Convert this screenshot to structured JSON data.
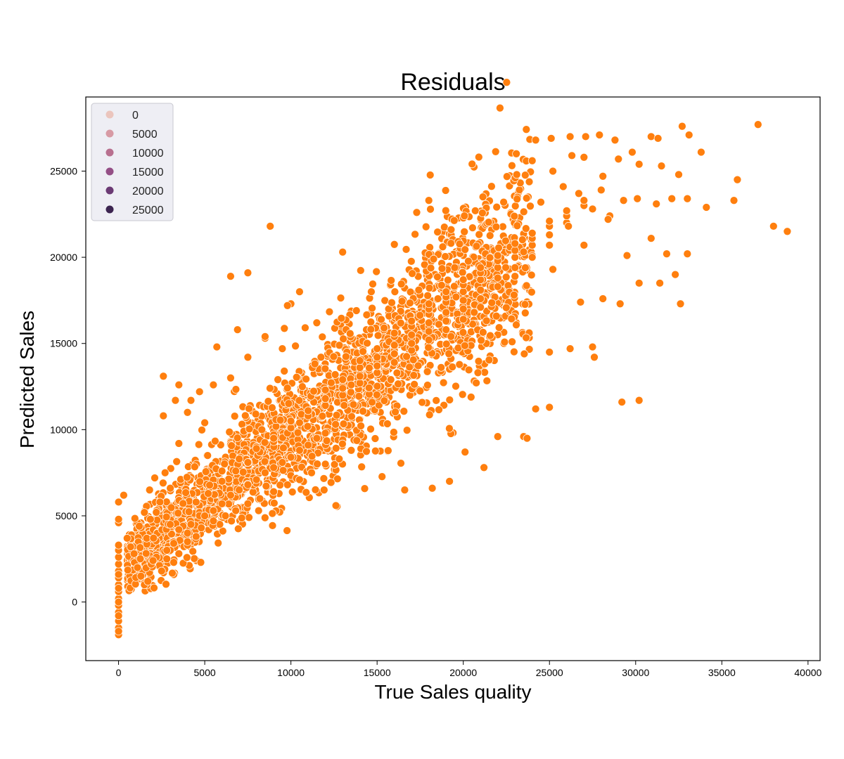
{
  "chart_data": {
    "type": "scatter",
    "title": "Residuals",
    "xlabel": "True Sales quality",
    "ylabel": "Predicted Sales",
    "xlim": [
      -1900,
      40700
    ],
    "ylim": [
      -3400,
      29300
    ],
    "xticks": [
      0,
      5000,
      10000,
      15000,
      20000,
      25000,
      30000,
      35000,
      40000
    ],
    "yticks": [
      0,
      5000,
      10000,
      15000,
      20000,
      25000
    ],
    "grid": false,
    "point_color": "#ff7f0e",
    "legend": {
      "placement": "top-left",
      "entries": [
        {
          "label": "0",
          "color": "#ebc5bd"
        },
        {
          "label": "5000",
          "color": "#d79aa4"
        },
        {
          "label": "10000",
          "color": "#b8708f"
        },
        {
          "label": "15000",
          "color": "#944f86"
        },
        {
          "label": "20000",
          "color": "#6b3a74"
        },
        {
          "label": "25000",
          "color": "#3c2450"
        }
      ]
    },
    "series": [
      {
        "x": [
          0,
          0,
          0,
          0,
          0,
          0,
          0,
          0,
          0,
          0,
          0,
          0,
          0,
          0,
          0,
          0,
          0,
          0,
          0,
          0,
          0,
          0,
          300,
          500,
          700,
          900,
          1100,
          1300,
          1500,
          1700,
          1900,
          2200,
          2500,
          2800,
          3200,
          3500,
          4000,
          4500,
          1200,
          1500,
          1800,
          2100,
          2400,
          2700,
          3000,
          3500,
          2600,
          3300,
          4000,
          4700,
          5000,
          5500,
          6500,
          7500,
          8500,
          9500,
          2000,
          3000,
          4000,
          3500,
          4200,
          5000,
          5500,
          6000,
          6500,
          7000,
          7500,
          8000,
          8500,
          9000,
          9500,
          10000,
          10500,
          11000,
          11500,
          12000,
          2800,
          3200,
          4000,
          4800,
          5500,
          6200,
          6800,
          7500,
          8200,
          9000,
          9800,
          10500,
          11200,
          12000,
          12800,
          13500,
          4500,
          5200,
          6000,
          6800,
          7500,
          8200,
          9000,
          9800,
          10500,
          11200,
          12000,
          12800,
          13500,
          14200,
          15000,
          15800,
          6000,
          7000,
          8000,
          9000,
          10000,
          11000,
          12000,
          13000,
          14000,
          15000,
          16000,
          17000,
          18000,
          19000,
          8000,
          9000,
          10000,
          11000,
          12000,
          13000,
          14000,
          15000,
          16000,
          17000,
          18000,
          19000,
          20000,
          21000,
          10000,
          11000,
          12000,
          13000,
          14000,
          15000,
          16000,
          17000,
          18000,
          19000,
          20000,
          21000,
          22000,
          23000,
          12000,
          13000,
          14000,
          15000,
          16000,
          17000,
          18000,
          19000,
          20000,
          21000,
          22000,
          23000,
          24000,
          25000,
          14000,
          15000,
          16000,
          17000,
          18000,
          19000,
          20000,
          21000,
          22000,
          23000,
          24000,
          25000,
          26000,
          16000,
          17000,
          18000,
          19000,
          20000,
          21000,
          22000,
          23000,
          24000,
          25000,
          26000,
          27000,
          18000,
          19000,
          20000,
          21000,
          22000,
          23000,
          24000,
          25000,
          26000,
          27000,
          28000,
          6500,
          7500,
          8800,
          10000,
          10500,
          11500,
          13000,
          17300,
          18000,
          19500,
          2600,
          3500,
          4200,
          5700,
          6900,
          8500,
          9800,
          24200,
          25100,
          26200,
          27100,
          27900,
          28800,
          29800,
          30900,
          31300,
          32700,
          33100,
          23100,
          24000,
          25200,
          26300,
          27000,
          28100,
          29000,
          30200,
          31500,
          32500,
          33800,
          24500,
          25800,
          26700,
          27500,
          28500,
          29300,
          30100,
          31200,
          32100,
          33000,
          34100,
          26800,
          27500,
          28100,
          29100,
          30200,
          31400,
          32600,
          35700,
          35900,
          37100,
          38000,
          38800,
          23500,
          24200,
          25000,
          26200,
          27600,
          29200,
          30200,
          16600,
          18200,
          19200,
          20100,
          21200,
          22000,
          23700,
          25000,
          24000,
          25200,
          26100,
          27000,
          28400,
          29500,
          30900,
          31800,
          32300,
          33000
        ],
        "y": [
          -1900,
          -1500,
          -1100,
          -600,
          -200,
          200,
          600,
          1000,
          1400,
          1800,
          2200,
          2600,
          3000,
          3300,
          4600,
          4800,
          5800,
          -1700,
          -800,
          0,
          800,
          1600,
          6200,
          3700,
          3200,
          2800,
          2000,
          1500,
          1000,
          1200,
          2200,
          2600,
          1800,
          2500,
          2300,
          2800,
          3300,
          3800,
          4400,
          5200,
          6500,
          7200,
          5800,
          7500,
          6600,
          9200,
          10800,
          11700,
          11000,
          12200,
          10400,
          12600,
          13000,
          14200,
          15300,
          14700,
          2400,
          3000,
          3500,
          4200,
          4500,
          5000,
          5300,
          5700,
          6200,
          6500,
          6800,
          7100,
          7500,
          7800,
          8100,
          8400,
          8800,
          9100,
          9500,
          9800,
          3000,
          3400,
          4000,
          4300,
          4700,
          5000,
          5300,
          5700,
          6000,
          6400,
          6800,
          7100,
          7500,
          8000,
          8300,
          8800,
          5800,
          6300,
          7000,
          7600,
          8100,
          8700,
          9300,
          9800,
          10400,
          10900,
          11500,
          12000,
          12600,
          13100,
          13700,
          14200,
          7600,
          8300,
          9000,
          9700,
          10400,
          11100,
          11800,
          12500,
          13200,
          13900,
          14600,
          15300,
          16000,
          16700,
          8900,
          9500,
          10100,
          10800,
          11400,
          12000,
          12700,
          13300,
          13900,
          14600,
          15200,
          15800,
          16400,
          17100,
          10500,
          11100,
          11800,
          12400,
          13100,
          13700,
          14400,
          15000,
          15700,
          16300,
          17000,
          17600,
          18300,
          18900,
          12300,
          12900,
          13600,
          14200,
          14900,
          15500,
          16200,
          16800,
          17500,
          18100,
          18800,
          19400,
          20100,
          20700,
          14000,
          14700,
          15400,
          16000,
          16700,
          17400,
          18000,
          18700,
          19400,
          20000,
          20700,
          21300,
          22000,
          15600,
          16300,
          17000,
          17700,
          18400,
          19100,
          19800,
          20400,
          21100,
          21800,
          22400,
          23000,
          17300,
          18000,
          18700,
          19400,
          20100,
          20800,
          21400,
          22100,
          22700,
          23300,
          23900,
          18900,
          19100,
          21800,
          17300,
          18000,
          16200,
          20300,
          22600,
          23300,
          19400,
          13100,
          12600,
          11700,
          14800,
          15800,
          15400,
          17200,
          26800,
          26900,
          27000,
          27000,
          27100,
          26800,
          26100,
          27000,
          26900,
          27600,
          27100,
          24800,
          25600,
          25000,
          25900,
          25800,
          24700,
          25700,
          25400,
          25300,
          24800,
          26100,
          23200,
          24100,
          23700,
          22800,
          22400,
          23300,
          23400,
          23100,
          23400,
          23400,
          22900,
          17400,
          14800,
          17600,
          17300,
          18500,
          18500,
          17300,
          23300,
          24500,
          27700,
          21800,
          21500,
          9600,
          11200,
          14500,
          14700,
          14200,
          11600,
          11700,
          6500,
          6600,
          7000,
          8700,
          7800,
          9600,
          9500,
          11300,
          20000,
          19300,
          21800,
          20700,
          22200,
          20100,
          21100,
          20200,
          19000,
          20200
        ]
      }
    ]
  }
}
